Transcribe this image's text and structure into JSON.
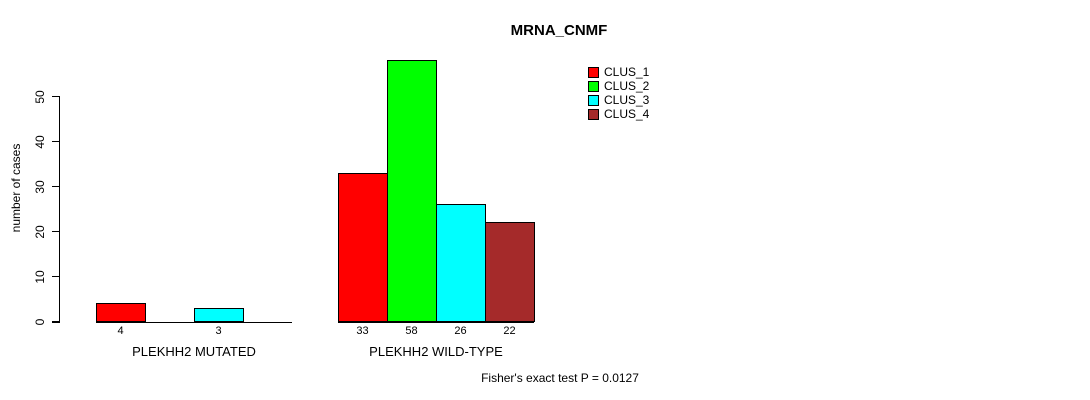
{
  "title": "MRNA_CNMF",
  "y_axis": {
    "label": "number of cases",
    "tick_labels": [
      "0",
      "10",
      "20",
      "30",
      "40",
      "50"
    ]
  },
  "footer": "Fisher's exact test P = 0.0127",
  "background_color": "#FFFFFF",
  "axis_color": "#000000",
  "legend": {
    "position": "top-right",
    "items": [
      {
        "label": "CLUS_1",
        "color": "#FF0000"
      },
      {
        "label": "CLUS_2",
        "color": "#00FF00"
      },
      {
        "label": "CLUS_3",
        "color": "#00FFFF"
      },
      {
        "label": "CLUS_4",
        "color": "#A52A2A"
      }
    ]
  },
  "chart_data": {
    "type": "bar",
    "title": "MRNA_CNMF",
    "xlabel": "",
    "ylabel": "number of cases",
    "ylim": [
      0,
      58
    ],
    "yticks": [
      0,
      10,
      20,
      30,
      40,
      50
    ],
    "grid": false,
    "legend_position": "top-right",
    "series": [
      "CLUS_1",
      "CLUS_2",
      "CLUS_3",
      "CLUS_4"
    ],
    "series_colors": [
      "#FF0000",
      "#00FF00",
      "#00FFFF",
      "#A52A2A"
    ],
    "groups": [
      {
        "label": "PLEKHH2 MUTATED",
        "values": [
          4,
          0,
          3,
          0
        ],
        "value_labels": [
          "4",
          "",
          "3",
          ""
        ]
      },
      {
        "label": "PLEKHH2 WILD-TYPE",
        "values": [
          33,
          58,
          26,
          22
        ],
        "value_labels": [
          "33",
          "58",
          "26",
          "22"
        ]
      }
    ],
    "annotation": "Fisher's exact test P = 0.0127"
  }
}
